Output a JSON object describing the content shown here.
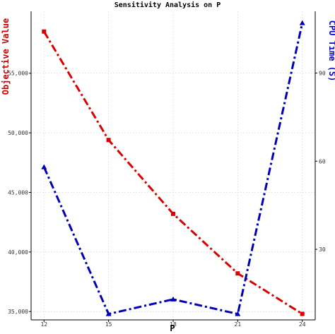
{
  "chart_data": {
    "type": "line",
    "title": "Sensitivity Analysis on P",
    "xlabel": "P",
    "ylabel_left": "Objective Value",
    "ylabel_right": "CPU Time (S)",
    "x": [
      12,
      15,
      18,
      21,
      24
    ],
    "x_ticks": [
      "12",
      "15",
      "18",
      "21",
      "24"
    ],
    "y_left_ticks": [
      "35,000",
      "40,000",
      "45,000",
      "50,000",
      "55,000"
    ],
    "y_left_tick_values": [
      35000,
      40000,
      45000,
      50000,
      55000
    ],
    "y_right_ticks": [
      "30",
      "60",
      "90"
    ],
    "y_right_tick_values": [
      30,
      60,
      90
    ],
    "ylim_left": [
      34300,
      60200
    ],
    "ylim_right": [
      6,
      111
    ],
    "grid": true,
    "series": [
      {
        "name": "Objective Value",
        "axis": "left",
        "color": "#dd0000",
        "marker": "square",
        "values": [
          58500,
          49400,
          43200,
          38200,
          34800
        ]
      },
      {
        "name": "CPU Time (S)",
        "axis": "right",
        "color": "#0000bb",
        "marker": "triangle",
        "values": [
          58,
          8,
          13,
          8,
          107
        ]
      }
    ]
  }
}
